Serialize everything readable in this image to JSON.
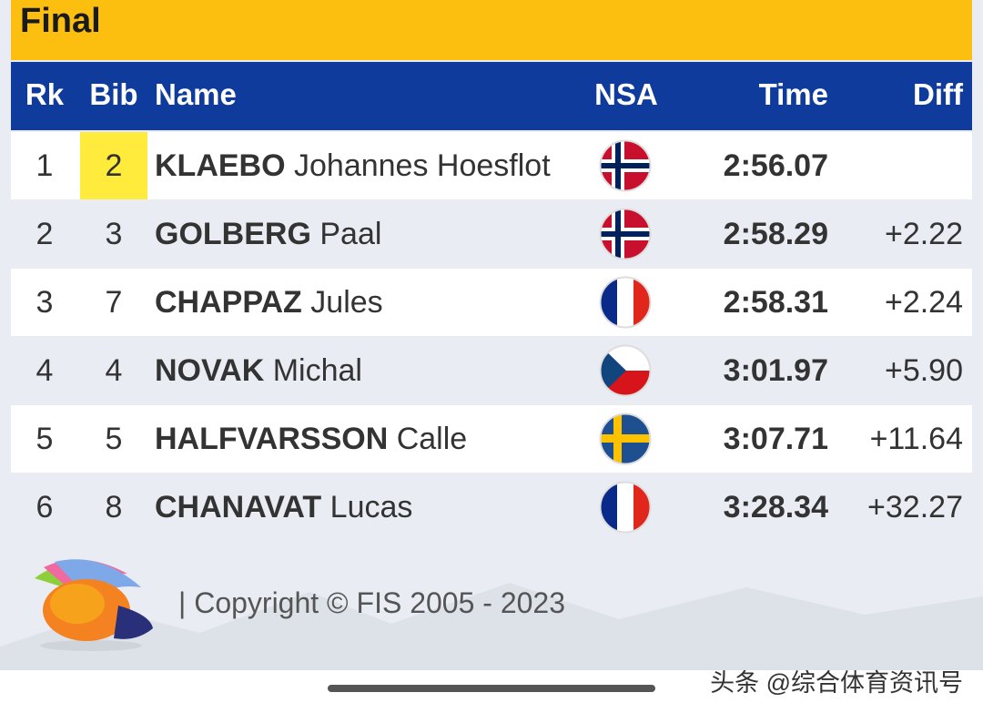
{
  "header": {
    "title": "Final"
  },
  "table": {
    "columns": [
      "Rk",
      "Bib",
      "Name",
      "NSA",
      "Time",
      "Diff"
    ],
    "rows": [
      {
        "rk": 1,
        "bib": 2,
        "surname": "KLAEBO",
        "given": "Johannes Hoesflot",
        "time": "2:56.07"
      },
      {
        "rk": 2,
        "bib": 3,
        "surname": "GOLBERG",
        "given": "Paal",
        "time": "2:58.29",
        "diff": "+2.22"
      },
      {
        "rk": 3,
        "bib": 7,
        "surname": "CHAPPAZ",
        "given": "Jules",
        "time": "2:58.31",
        "diff": "+2.24"
      },
      {
        "rk": 4,
        "bib": 4,
        "surname": "NOVAK",
        "given": "Michal",
        "time": "3:01.97",
        "diff": "+5.90"
      },
      {
        "rk": 5,
        "bib": 5,
        "surname": "HALFVARSSON",
        "given": "Calle",
        "time": "3:07.71",
        "diff": "+11.64"
      },
      {
        "rk": 6,
        "bib": 8,
        "surname": "CHANAVAT",
        "given": "Lucas",
        "time": "3:28.34",
        "diff": "+32.27"
      }
    ]
  },
  "footer": {
    "copyright": "| Copyright © FIS 2005 - 2023"
  },
  "watermark": "头条 @综合体育资讯号"
}
